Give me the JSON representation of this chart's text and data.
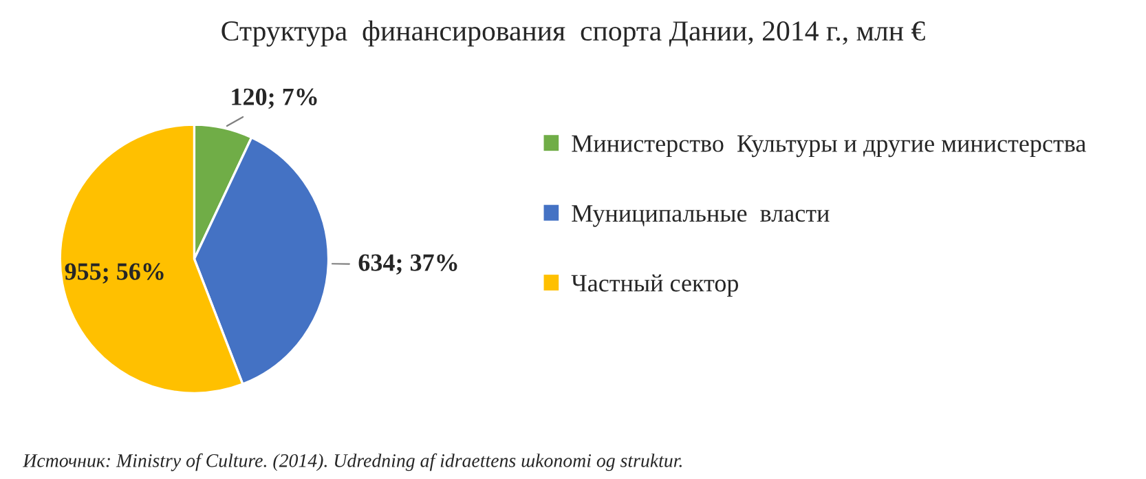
{
  "chart_data": {
    "type": "pie",
    "title": "Структура  финансирования  спорта Дании, 2014 г., млн €",
    "categories": [
      "Министерство  Культуры и другие министерства",
      "Муниципальные  власти",
      "Частный сектор"
    ],
    "values": [
      120,
      634,
      955
    ],
    "colors": [
      "#70ad47",
      "#4472c4",
      "#ffc000"
    ],
    "value_labels": [
      "120; 7%",
      "634; 37%",
      "955; 56%"
    ],
    "legend": "right",
    "annotations": [
      "Источник: Ministry of Culture. (2014). Udredning af idraettens шkonomi og struktur."
    ]
  }
}
